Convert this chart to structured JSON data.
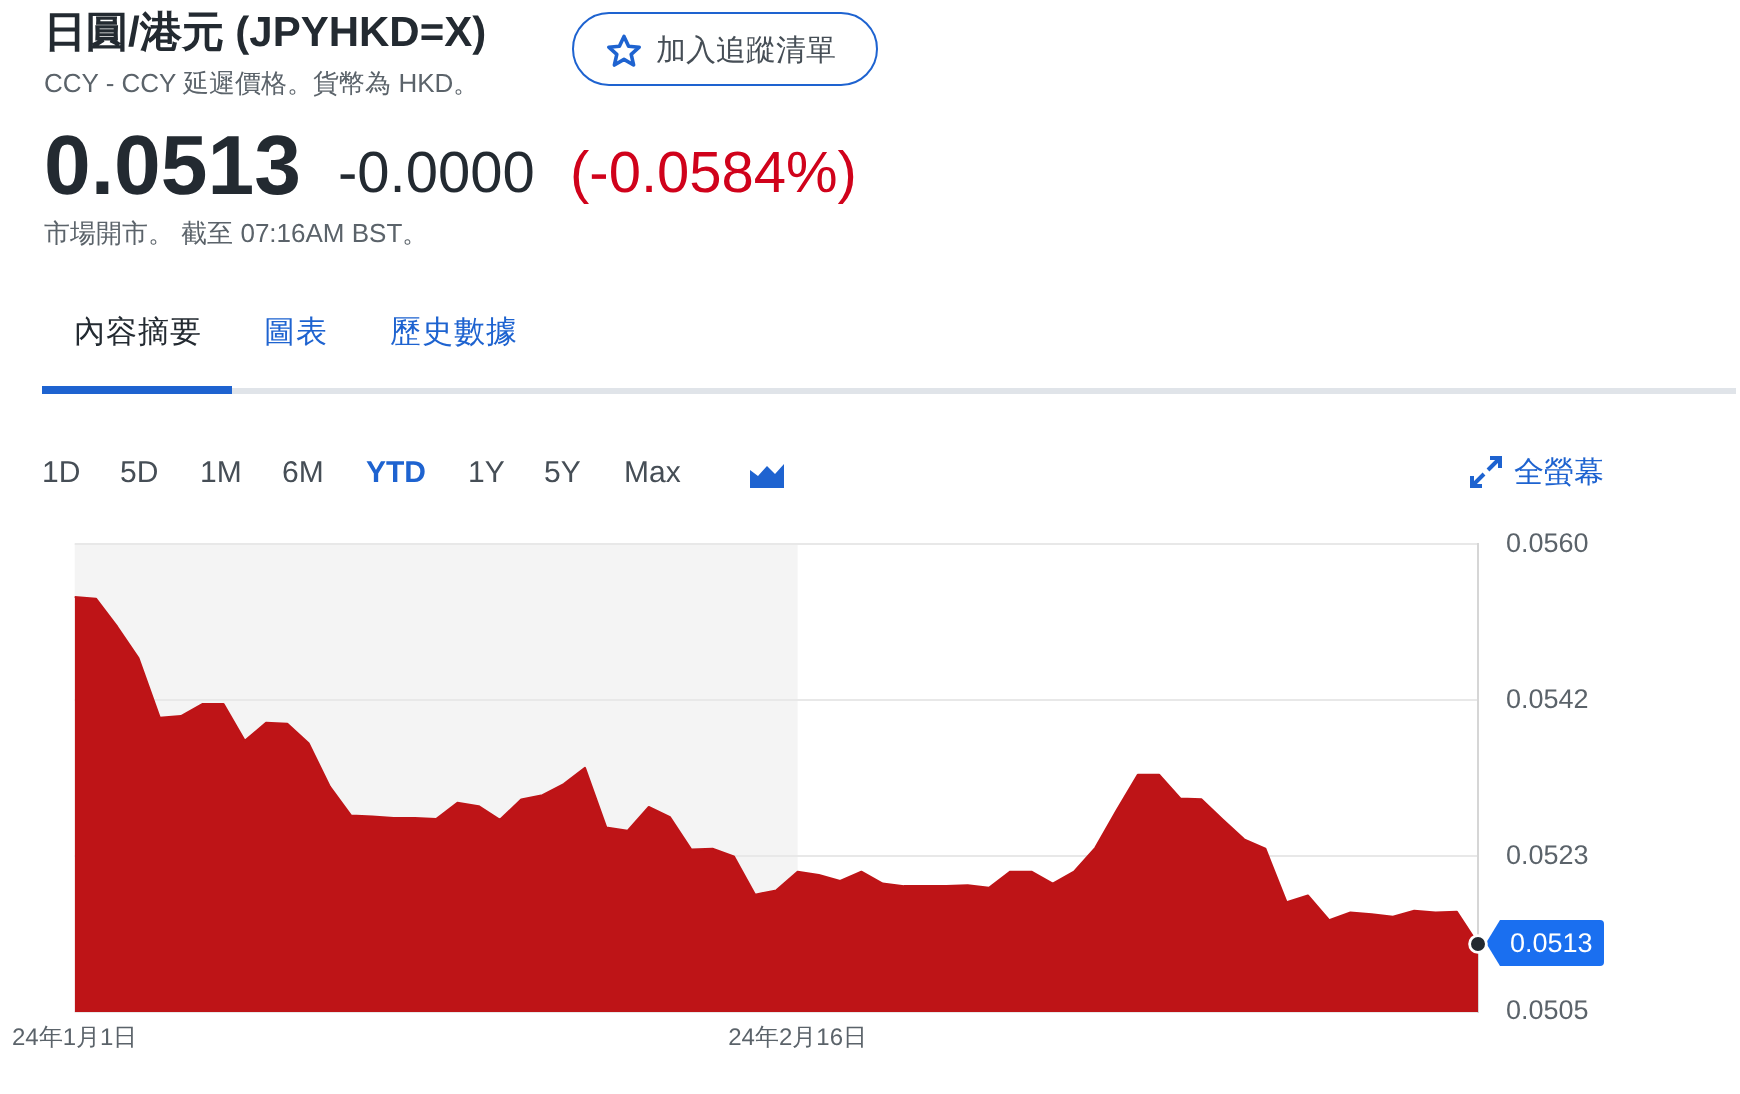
{
  "chart_data": {
    "type": "area",
    "title": "日圓/港元 (JPYHKD=X)",
    "subtitle": "CCY - CCY 延遲價格。貨幣為 HKD。",
    "categories": [
      "24年1月1日",
      null,
      null,
      null,
      null,
      null,
      null,
      null,
      null,
      null,
      null,
      null,
      null,
      null,
      null,
      null,
      null,
      null,
      null,
      null,
      null,
      null,
      null,
      null,
      null,
      null,
      null,
      null,
      null,
      null,
      null,
      null,
      null,
      null,
      "24年2月16日",
      null,
      null,
      null,
      null,
      null,
      null,
      null,
      null,
      null,
      null,
      null,
      null,
      null,
      null,
      null,
      null,
      null,
      null,
      null,
      null,
      null,
      null,
      null,
      null,
      null,
      null,
      null,
      null,
      null,
      null,
      null,
      null
    ],
    "values": [
      0.05538,
      0.05536,
      0.05503,
      0.05466,
      0.05396,
      0.05398,
      0.05412,
      0.05412,
      0.05369,
      0.0539,
      0.05389,
      0.05366,
      0.05315,
      0.05281,
      0.0528,
      0.05278,
      0.05278,
      0.05277,
      0.05296,
      0.05292,
      0.05276,
      0.053,
      0.05305,
      0.05318,
      0.05337,
      0.05267,
      0.05263,
      0.05291,
      0.05279,
      0.05241,
      0.05242,
      0.05233,
      0.05188,
      0.05193,
      0.05215,
      0.05211,
      0.05204,
      0.05215,
      0.05201,
      0.05198,
      0.05198,
      0.05198,
      0.05199,
      0.05196,
      0.05215,
      0.05215,
      0.05201,
      0.05215,
      0.05243,
      0.05287,
      0.05329,
      0.05329,
      0.05301,
      0.053,
      0.05276,
      0.05253,
      0.05242,
      0.05179,
      0.05187,
      0.05158,
      0.05167,
      0.05165,
      0.05162,
      0.05169,
      0.05167,
      0.05168,
      0.0513
    ],
    "value_labels": [
      null,
      null,
      null,
      null,
      null,
      null,
      null,
      null,
      null,
      null,
      null,
      null,
      null,
      null,
      null,
      null,
      null,
      null,
      null,
      null,
      null,
      null,
      null,
      null,
      null,
      null,
      null,
      null,
      null,
      null,
      null,
      null,
      null,
      null,
      null,
      null,
      null,
      null,
      null,
      null,
      null,
      null,
      null,
      null,
      null,
      null,
      null,
      null,
      null,
      null,
      null,
      null,
      null,
      null,
      null,
      null,
      null,
      null,
      null,
      null,
      null,
      null,
      null,
      null,
      null,
      null,
      "0.0513"
    ],
    "color": "#be1417",
    "ylim": [
      0.0505,
      0.056
    ],
    "yticks": [
      {
        "value": 0.056,
        "label": "0.0560"
      },
      {
        "value": 0.054167,
        "label": "0.0542"
      },
      {
        "value": 0.052333,
        "label": "0.0523"
      },
      0.0505
    ],
    "grid": "y",
    "bands": [
      {
        "axis": "x",
        "from": "24年1月1日",
        "to": "24年2月16日",
        "color": "#f4f4f4"
      }
    ],
    "annotations": [
      "0.0513",
      "-0.0000",
      "(-0.0584%)",
      "市場開市。 截至 07:16AM BST。",
      "加入追蹤清單",
      "內容摘要",
      "圖表",
      "歷史數據",
      "1D",
      "5D",
      "1M",
      "6M",
      "YTD",
      "1Y",
      "5Y",
      "Max",
      "全螢幕"
    ]
  }
}
